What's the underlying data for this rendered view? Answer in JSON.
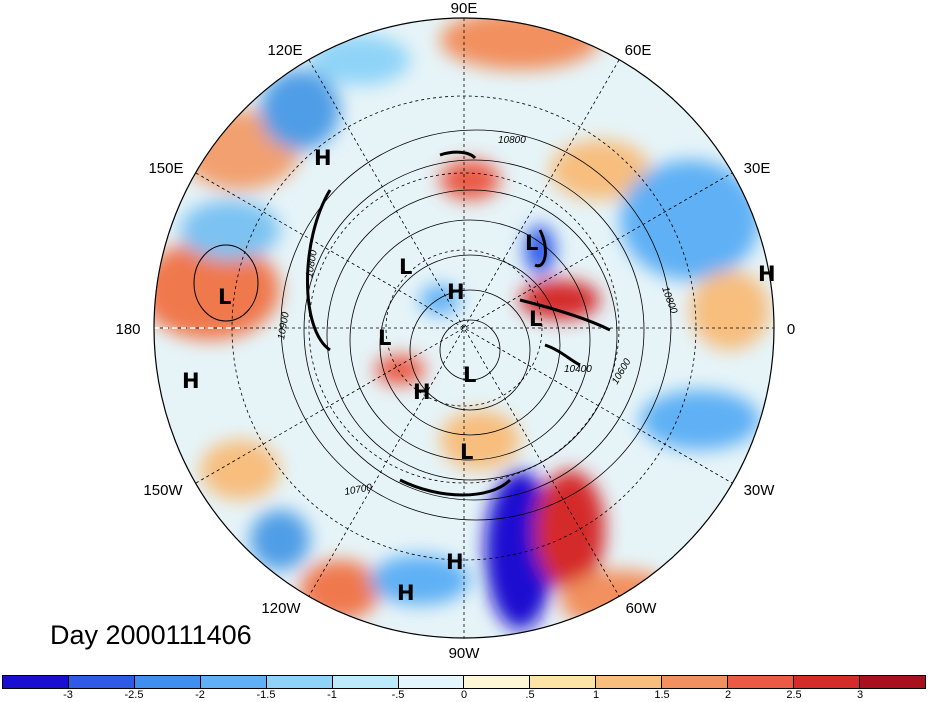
{
  "title": "Day 2000111406",
  "longitude_labels": [
    "90E",
    "60E",
    "30E",
    "0",
    "30W",
    "60W",
    "90W",
    "120W",
    "150W",
    "180",
    "150E",
    "120E"
  ],
  "pressure_centers": [
    {
      "label": "H"
    },
    {
      "label": "L"
    },
    {
      "label": "H"
    },
    {
      "label": "L"
    },
    {
      "label": "L"
    },
    {
      "label": "H"
    },
    {
      "label": "L"
    },
    {
      "label": "L"
    },
    {
      "label": "H"
    },
    {
      "label": "H"
    },
    {
      "label": "L"
    },
    {
      "label": "L"
    },
    {
      "label": "H"
    },
    {
      "label": "H"
    }
  ],
  "contour_labels": [
    "10800",
    "10800",
    "10900",
    "10800",
    "10400",
    "10600",
    "10700"
  ],
  "colorbar": {
    "colors": [
      "#1a0fd0",
      "#2e5ae6",
      "#3f8ef0",
      "#5fb0f5",
      "#8fd4f8",
      "#bdeafa",
      "#e2f6fb",
      "#fdf7d6",
      "#fbe4a6",
      "#f7be7e",
      "#f2905f",
      "#ea5a45",
      "#d42b2b",
      "#a8101e"
    ],
    "tick_labels": [
      "-3",
      "-2.5",
      "-2",
      "-1.5",
      "-1",
      "-.5",
      "0",
      ".5",
      "1",
      "1.5",
      "2",
      "2.5",
      "3"
    ]
  }
}
